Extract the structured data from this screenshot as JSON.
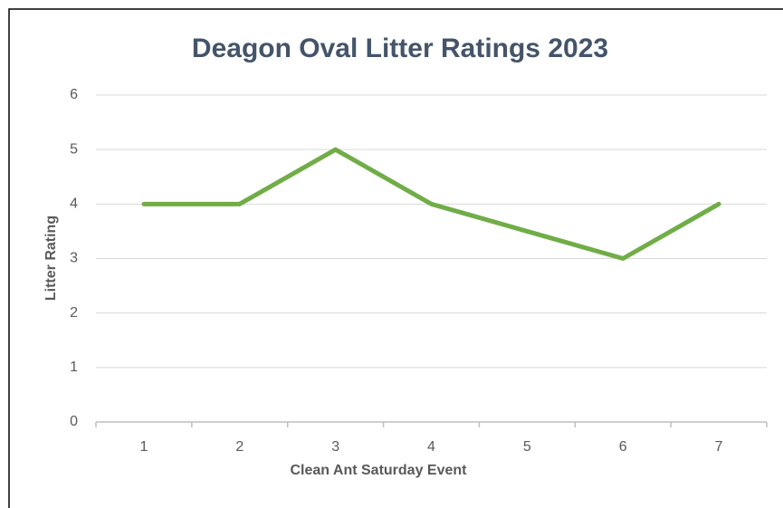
{
  "chart_data": {
    "type": "line",
    "title": "Deagon Oval Litter Ratings 2023",
    "x_label": "Clean Ant Saturday Event",
    "y_label": "Litter Rating",
    "categories": [
      "1",
      "2",
      "3",
      "4",
      "5",
      "6",
      "7"
    ],
    "series": [
      {
        "name": "Litter Rating",
        "color": "#70ad47",
        "values": [
          4,
          4,
          5,
          4,
          3.5,
          3,
          4
        ]
      }
    ],
    "ylim": [
      0,
      6
    ],
    "yticks": [
      0,
      1,
      2,
      3,
      4,
      5,
      6
    ],
    "grid": true
  }
}
